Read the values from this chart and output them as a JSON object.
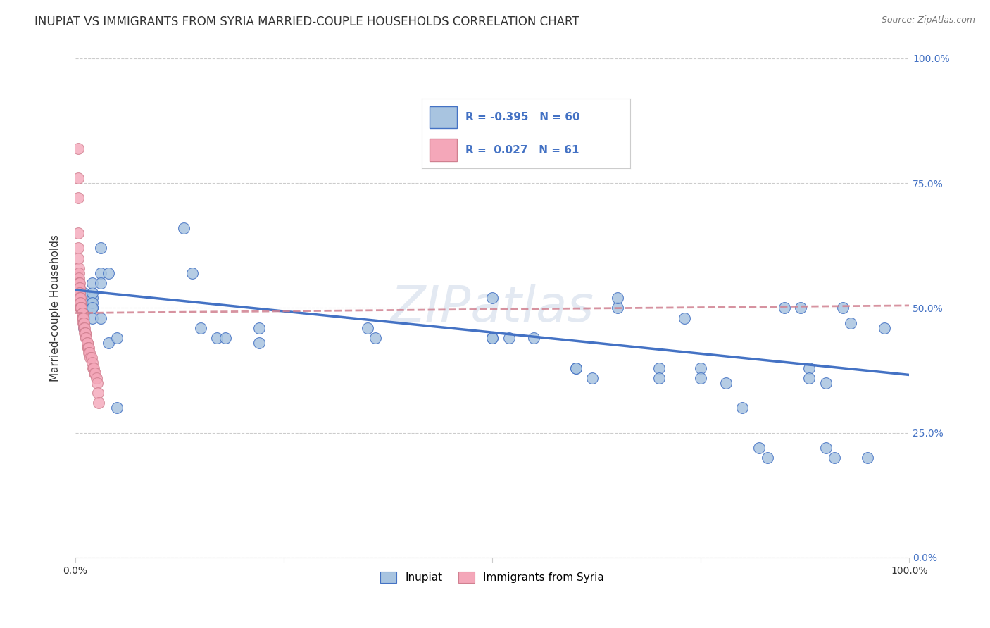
{
  "title": "INUPIAT VS IMMIGRANTS FROM SYRIA MARRIED-COUPLE HOUSEHOLDS CORRELATION CHART",
  "source": "Source: ZipAtlas.com",
  "ylabel": "Married-couple Households",
  "watermark": "ZIPatlas",
  "color_blue": "#a8c4e0",
  "color_pink": "#f4a7b9",
  "line_blue": "#4472c4",
  "line_pink": "#d08090",
  "legend_text_color": "#4472c4",
  "inupiat_x": [
    0.01,
    0.01,
    0.01,
    0.01,
    0.01,
    0.01,
    0.02,
    0.02,
    0.02,
    0.02,
    0.02,
    0.02,
    0.02,
    0.03,
    0.03,
    0.03,
    0.03,
    0.04,
    0.04,
    0.05,
    0.05,
    0.13,
    0.14,
    0.15,
    0.17,
    0.18,
    0.22,
    0.22,
    0.35,
    0.36,
    0.5,
    0.5,
    0.5,
    0.52,
    0.55,
    0.6,
    0.6,
    0.62,
    0.65,
    0.65,
    0.7,
    0.7,
    0.73,
    0.75,
    0.75,
    0.78,
    0.8,
    0.82,
    0.83,
    0.85,
    0.87,
    0.88,
    0.88,
    0.9,
    0.9,
    0.91,
    0.92,
    0.93,
    0.95,
    0.97
  ],
  "inupiat_y": [
    0.5,
    0.52,
    0.48,
    0.46,
    0.5,
    0.53,
    0.5,
    0.52,
    0.53,
    0.51,
    0.5,
    0.48,
    0.55,
    0.57,
    0.48,
    0.62,
    0.55,
    0.57,
    0.43,
    0.44,
    0.3,
    0.66,
    0.57,
    0.46,
    0.44,
    0.44,
    0.46,
    0.43,
    0.46,
    0.44,
    0.44,
    0.44,
    0.52,
    0.44,
    0.44,
    0.38,
    0.38,
    0.36,
    0.5,
    0.52,
    0.38,
    0.36,
    0.48,
    0.38,
    0.36,
    0.35,
    0.3,
    0.22,
    0.2,
    0.5,
    0.5,
    0.38,
    0.36,
    0.35,
    0.22,
    0.2,
    0.5,
    0.47,
    0.2,
    0.46
  ],
  "syria_x": [
    0.003,
    0.003,
    0.003,
    0.003,
    0.003,
    0.003,
    0.004,
    0.004,
    0.004,
    0.004,
    0.004,
    0.005,
    0.005,
    0.005,
    0.005,
    0.005,
    0.005,
    0.005,
    0.006,
    0.006,
    0.006,
    0.006,
    0.006,
    0.007,
    0.007,
    0.007,
    0.007,
    0.008,
    0.008,
    0.008,
    0.008,
    0.009,
    0.009,
    0.009,
    0.01,
    0.01,
    0.01,
    0.011,
    0.011,
    0.012,
    0.012,
    0.013,
    0.013,
    0.014,
    0.014,
    0.015,
    0.015,
    0.016,
    0.016,
    0.017,
    0.018,
    0.019,
    0.02,
    0.021,
    0.022,
    0.023,
    0.024,
    0.025,
    0.026,
    0.027,
    0.028
  ],
  "syria_y": [
    0.82,
    0.76,
    0.72,
    0.65,
    0.62,
    0.6,
    0.58,
    0.57,
    0.56,
    0.55,
    0.55,
    0.55,
    0.54,
    0.54,
    0.53,
    0.53,
    0.52,
    0.52,
    0.52,
    0.51,
    0.51,
    0.5,
    0.5,
    0.5,
    0.5,
    0.5,
    0.5,
    0.49,
    0.49,
    0.49,
    0.48,
    0.48,
    0.48,
    0.47,
    0.47,
    0.47,
    0.46,
    0.46,
    0.45,
    0.45,
    0.45,
    0.44,
    0.44,
    0.43,
    0.43,
    0.42,
    0.42,
    0.42,
    0.41,
    0.41,
    0.4,
    0.4,
    0.39,
    0.38,
    0.38,
    0.37,
    0.37,
    0.36,
    0.35,
    0.33,
    0.31
  ],
  "inupiat_line_x": [
    0.0,
    1.0
  ],
  "inupiat_line_y": [
    0.536,
    0.366
  ],
  "syria_line_x": [
    0.0,
    1.0
  ],
  "syria_line_y": [
    0.49,
    0.505
  ],
  "xlim": [
    0.0,
    1.0
  ],
  "ylim": [
    0.0,
    1.0
  ],
  "grid_color": "#cccccc",
  "background_color": "#ffffff"
}
